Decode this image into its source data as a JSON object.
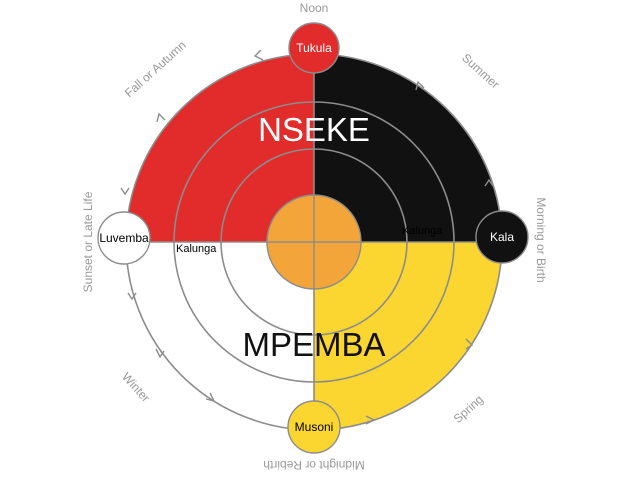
{
  "colors": {
    "red": "#e22b2b",
    "black": "#111111",
    "yellow": "#fbd630",
    "white": "#ffffff",
    "center": "#f3a53a",
    "line": "#8c8c8c",
    "ring_label": "#999999"
  },
  "title_top": "NSEKE",
  "title_bottom": "MPEMBA",
  "kalunga_left": "Kalunga",
  "kalunga_right": "Kalunga",
  "nodes": {
    "top": "Tukula",
    "right": "Kala",
    "bottom": "Musoni",
    "left": "Luvemba"
  },
  "outer_labels": {
    "noon": "Noon",
    "summer": "Summer",
    "morning": "Morning or Birth",
    "spring": "Spring",
    "midnight": "Midnight or Rebirth",
    "winter": "Winter",
    "sunset": "Sunset or Late Life",
    "fall": "Fall or Autumn"
  }
}
